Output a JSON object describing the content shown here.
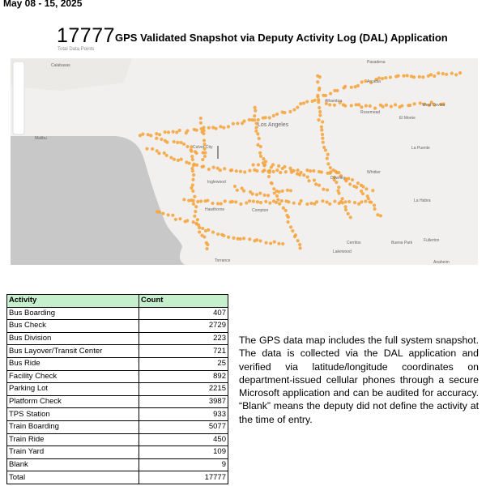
{
  "header": {
    "date": "May 08 - 15, 2025",
    "total": "17777",
    "title": "GPS Validated Snapshot via Deputy Activity Log (DAL) Application",
    "subtitle": "Total Data Points"
  },
  "map": {
    "labels": [
      "Calabasas",
      "Pasadena",
      "Arcadia",
      "Alhambra",
      "Los Angeles",
      "Culver City",
      "Rosemead",
      "El Monte",
      "West Covina",
      "Inglewood",
      "Hawthorne",
      "Downey",
      "Whittier",
      "La Habra",
      "Fullerton",
      "Buena Park",
      "Cerritos",
      "Lakewood",
      "Anaheim",
      "Torrance",
      "La Puente",
      "Compton",
      "Malibu"
    ]
  },
  "table": {
    "columns": [
      "Activity",
      "Count"
    ],
    "rows": [
      [
        "Bus Boarding",
        407
      ],
      [
        "Bus Check",
        2729
      ],
      [
        "Bus Division",
        223
      ],
      [
        "Bus Layover/Transit Center",
        721
      ],
      [
        "Bus Ride",
        25
      ],
      [
        "Facility Check",
        892
      ],
      [
        "Parking Lot",
        2215
      ],
      [
        "Platform Check",
        3987
      ],
      [
        "TPS Station",
        933
      ],
      [
        "Train Boarding",
        5077
      ],
      [
        "Train Ride",
        450
      ],
      [
        "Train Yard",
        109
      ],
      [
        "Blank",
        9
      ],
      [
        "Total",
        17777
      ]
    ]
  },
  "note": "The GPS data map includes the full system snapshot. The data is collected via the DAL application and verified via latitude/longitude coordinates on department-issued cellular phones through a secure Microsoft application and can be audited for accuracy. “Blank” means the deputy did not define the activity at the time of entry."
}
